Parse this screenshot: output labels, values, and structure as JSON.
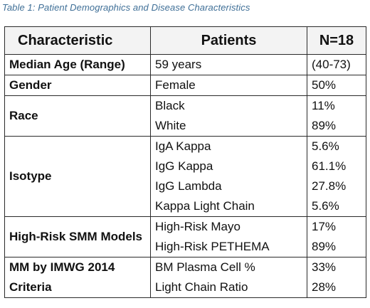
{
  "caption": "Table 1: Patient Demographics and Disease Characteristics",
  "headers": {
    "characteristic": "Characteristic",
    "patients": "Patients",
    "n": "N=18"
  },
  "rows": [
    {
      "label": "Median Age (Range)",
      "items": [
        "59 years"
      ],
      "values": [
        "(40-73)"
      ]
    },
    {
      "label": "Gender",
      "items": [
        "Female"
      ],
      "values": [
        "50%"
      ]
    },
    {
      "label": "Race",
      "items": [
        "Black",
        "White"
      ],
      "values": [
        "11%",
        "89%"
      ]
    },
    {
      "label": "Isotype",
      "items": [
        "IgA Kappa",
        "IgG Kappa",
        "IgG Lambda",
        "Kappa Light Chain"
      ],
      "values": [
        "5.6%",
        "61.1%",
        "27.8%",
        "5.6%"
      ]
    },
    {
      "label": "High-Risk SMM Models",
      "items": [
        "High-Risk Mayo",
        "High-Risk PETHEMA"
      ],
      "values": [
        "17%",
        "89%"
      ]
    },
    {
      "label": "MM by IMWG 2014 Criteria",
      "items": [
        "BM Plasma Cell %",
        "Light Chain Ratio"
      ],
      "values": [
        "33%",
        "28%"
      ]
    }
  ],
  "colors": {
    "caption": "#3f6f97",
    "border": "#2a2a2a",
    "header_bg": "#f3f3f3"
  }
}
